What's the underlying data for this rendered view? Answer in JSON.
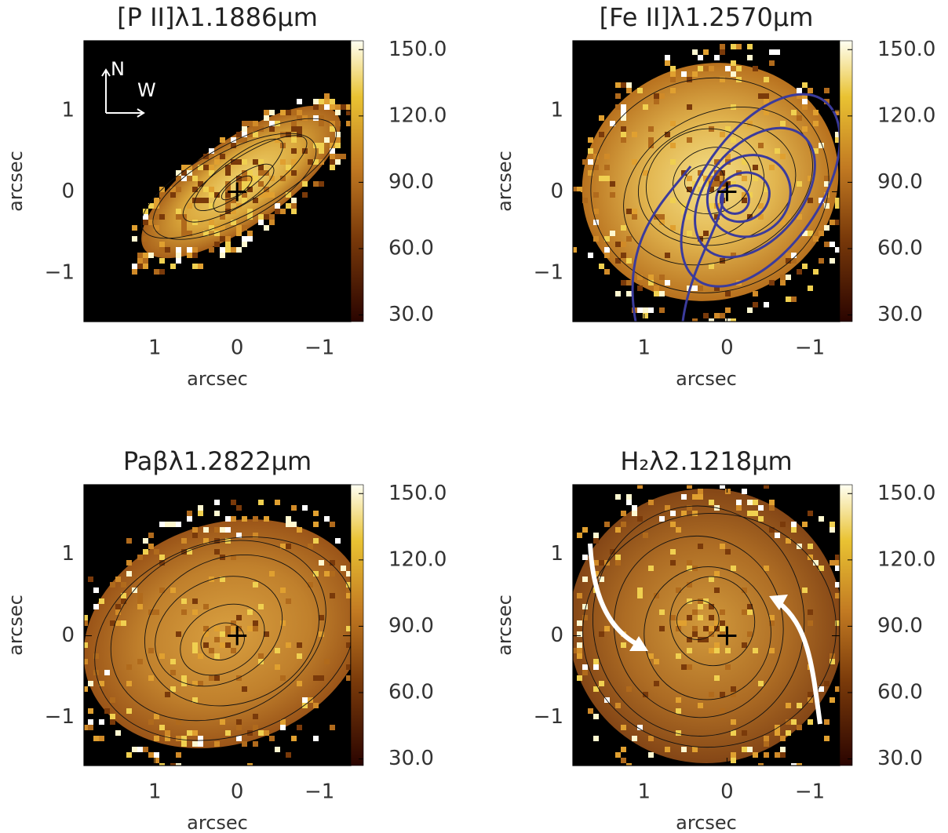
{
  "chart_data": [
    {
      "type": "map",
      "title": "[P II]λ1.1886μm",
      "xlabel": "arcsec",
      "ylabel": "arcsec",
      "xlim": [
        1.86,
        -1.38
      ],
      "ylim": [
        -1.6,
        1.86
      ],
      "xticks": [
        1,
        0,
        {
          "value": -1,
          "label": "−1"
        }
      ],
      "yticks": [
        {
          "value": -1,
          "label": "−1"
        },
        0,
        1
      ],
      "clim": [
        27,
        154
      ],
      "cticks": [
        {
          "value": 30,
          "label": "30.0"
        },
        {
          "value": 60,
          "label": "60.0"
        },
        {
          "value": 90,
          "label": "90.0"
        },
        {
          "value": 120,
          "label": "120.0"
        },
        {
          "value": 150,
          "label": "150.0"
        }
      ],
      "annotations": [
        "N",
        "W"
      ]
    },
    {
      "type": "map",
      "title": "[Fe II]λ1.2570μm",
      "xlabel": "arcsec",
      "ylabel": "arcsec",
      "xlim": [
        1.86,
        -1.36
      ],
      "ylim": [
        -1.6,
        1.86
      ],
      "xticks": [
        1,
        0,
        {
          "value": -1,
          "label": "−1"
        }
      ],
      "yticks": [
        {
          "value": -1,
          "label": "−1"
        },
        0,
        1
      ],
      "clim": [
        27,
        154
      ],
      "cticks": [
        {
          "value": 30,
          "label": "30.0"
        },
        {
          "value": 60,
          "label": "60.0"
        },
        {
          "value": 90,
          "label": "90.0"
        },
        {
          "value": 120,
          "label": "120.0"
        },
        {
          "value": 150,
          "label": "150.0"
        }
      ]
    },
    {
      "type": "map",
      "title": "Paβλ1.2822μm",
      "xlabel": "arcsec",
      "ylabel": "arcsec",
      "xlim": [
        1.86,
        -1.38
      ],
      "ylim": [
        -1.59,
        1.85
      ],
      "xticks": [
        1,
        0,
        {
          "value": -1,
          "label": "−1"
        }
      ],
      "yticks": [
        {
          "value": -1,
          "label": "−1"
        },
        0,
        1
      ],
      "clim": [
        27,
        154
      ],
      "cticks": [
        {
          "value": 30,
          "label": "30.0"
        },
        {
          "value": 60,
          "label": "60.0"
        },
        {
          "value": 90,
          "label": "90.0"
        },
        {
          "value": 120,
          "label": "120.0"
        },
        {
          "value": 150,
          "label": "150.0"
        }
      ]
    },
    {
      "type": "map",
      "title": "H₂λ2.1218μm",
      "xlabel": "arcsec",
      "ylabel": "arcsec",
      "xlim": [
        1.86,
        -1.36
      ],
      "ylim": [
        -1.59,
        1.85
      ],
      "xticks": [
        1,
        0,
        {
          "value": -1,
          "label": "−1"
        }
      ],
      "yticks": [
        {
          "value": -1,
          "label": "−1"
        },
        0,
        1
      ],
      "clim": [
        27,
        154
      ],
      "cticks": [
        {
          "value": 30,
          "label": "30.0"
        },
        {
          "value": 60,
          "label": "60.0"
        },
        {
          "value": 90,
          "label": "90.0"
        },
        {
          "value": 120,
          "label": "120.0"
        },
        {
          "value": 150,
          "label": "150.0"
        }
      ]
    }
  ]
}
